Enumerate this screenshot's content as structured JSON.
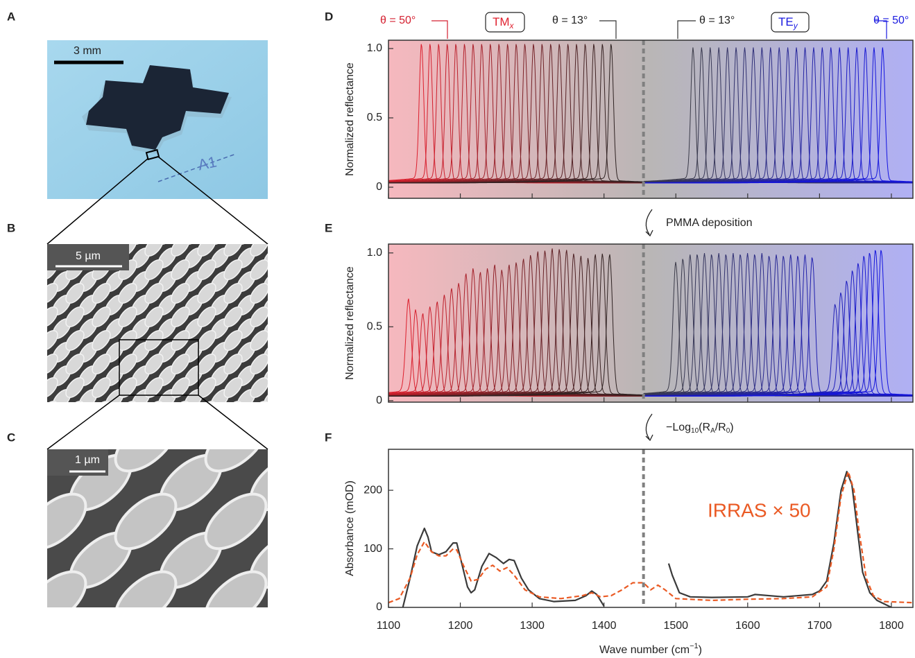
{
  "panels": [
    "A",
    "B",
    "C"
  ],
  "photos": {
    "a_scale": "3 mm",
    "a_mark": "A1",
    "b_scale": "5 µm",
    "c_scale": "1 µm"
  },
  "annotations": {
    "arrow_1": "PMMA deposition",
    "arrow_2": {
      "minus_log": "−Log",
      "sub_10": "10",
      "open": "(R",
      "sub_a": "A",
      "slash": "/R",
      "sub_0": "0",
      "close": ")"
    }
  },
  "chart_data": [
    {
      "type": "resonance",
      "label": "D",
      "ylabel": "Normalized reflectance",
      "xlim": [
        1100,
        1830
      ],
      "ylim": [
        -0.08,
        1.06
      ],
      "xticks": [
        1100,
        1200,
        1300,
        1400,
        1500,
        1600,
        1700,
        1800
      ],
      "yticks": [
        0,
        0.5,
        {
          "value": 1,
          "label": "1.0"
        }
      ],
      "divider": 1455,
      "top_labels": {
        "tm_angle_max": "θ = 50°",
        "tm": "TM",
        "tm_sub": "x",
        "tm_angle_min": "θ = 13°",
        "te_angle_min": "θ = 13°",
        "te": "TE",
        "te_sub": "y",
        "te_angle_max": "θ = 50°"
      },
      "series": [
        {
          "colors": [
            "#dc1f2d",
            "#2e2222"
          ],
          "x": [
            1146,
            1158,
            1170,
            1182,
            1194,
            1206,
            1218,
            1230,
            1242,
            1254,
            1266,
            1278,
            1290,
            1302,
            1314,
            1326,
            1338,
            1350,
            1362,
            1374,
            1386,
            1398,
            1410
          ],
          "values": [
            1,
            1,
            1,
            1,
            1,
            1,
            1,
            1,
            1,
            1,
            1,
            1,
            1,
            1,
            1,
            1,
            1,
            1,
            1,
            1,
            1,
            1,
            1
          ]
        },
        {
          "colors": [
            "#3a3a48",
            "#1414e0"
          ],
          "x": [
            1524,
            1536,
            1548,
            1560,
            1572,
            1584,
            1596,
            1608,
            1620,
            1632,
            1644,
            1656,
            1668,
            1680,
            1692,
            1704,
            1716,
            1728,
            1740,
            1752,
            1764,
            1776,
            1788
          ],
          "values": [
            0.97,
            0.97,
            0.97,
            0.97,
            0.97,
            0.97,
            0.97,
            0.97,
            0.97,
            0.97,
            0.97,
            0.97,
            0.97,
            0.97,
            0.97,
            0.97,
            0.97,
            0.97,
            0.97,
            0.97,
            0.97,
            0.97,
            0.97
          ]
        }
      ]
    },
    {
      "type": "resonance",
      "label": "E",
      "ylabel": "Normalized reflectance",
      "xlim": [
        1100,
        1830
      ],
      "ylim": [
        -0.01,
        1.06
      ],
      "xticks": [
        1100,
        1200,
        1300,
        1400,
        1500,
        1600,
        1700,
        1800
      ],
      "yticks": [
        0,
        0.5,
        {
          "value": 1,
          "label": "1.0"
        }
      ],
      "divider": 1455,
      "series": [
        {
          "colors": [
            "#dc1f2d",
            "#2e2222"
          ],
          "x": [
            1128,
            1138,
            1148,
            1158,
            1168,
            1178,
            1188,
            1198,
            1208,
            1218,
            1228,
            1238,
            1248,
            1258,
            1268,
            1278,
            1288,
            1298,
            1308,
            1318,
            1328,
            1338,
            1348,
            1358,
            1368,
            1378,
            1388,
            1398,
            1408
          ],
          "values": [
            0.65,
            0.58,
            0.55,
            0.6,
            0.63,
            0.68,
            0.72,
            0.76,
            0.82,
            0.86,
            0.83,
            0.86,
            0.88,
            0.85,
            0.88,
            0.9,
            0.92,
            0.95,
            0.97,
            0.98,
            0.99,
            0.99,
            0.98,
            0.96,
            0.94,
            0.93,
            0.95,
            0.96,
            0.95
          ]
        },
        {
          "colors": [
            "#3a3a48",
            "#1414e0"
          ],
          "x": [
            1500,
            1510,
            1520,
            1530,
            1540,
            1550,
            1560,
            1570,
            1580,
            1590,
            1600,
            1610,
            1620,
            1630,
            1640,
            1650,
            1660,
            1670,
            1680,
            1690,
            1722,
            1730,
            1738,
            1746,
            1754,
            1762,
            1770,
            1778,
            1786
          ],
          "values": [
            0.9,
            0.93,
            0.95,
            0.96,
            0.96,
            0.96,
            0.96,
            0.96,
            0.96,
            0.96,
            0.96,
            0.96,
            0.96,
            0.95,
            0.95,
            0.95,
            0.95,
            0.95,
            0.95,
            0.94,
            0.62,
            0.7,
            0.78,
            0.85,
            0.9,
            0.95,
            0.97,
            0.99,
            0.99
          ]
        }
      ]
    },
    {
      "type": "line",
      "label": "F",
      "ylabel": "Absorbance (mOD)",
      "xlabel": {
        "text": "Wave number (cm",
        "sup": "−1",
        "end": ")"
      },
      "xlim": [
        1100,
        1830
      ],
      "ylim": [
        0,
        270
      ],
      "xticks": [
        1100,
        1200,
        1300,
        1400,
        1500,
        1600,
        1700,
        1800
      ],
      "yticks": [
        0,
        100,
        200
      ],
      "divider": 1455,
      "series": [
        {
          "color": "#3a3a3a",
          "dash": false,
          "x": [
            1120,
            1130,
            1140,
            1150,
            1155,
            1160,
            1170,
            1180,
            1190,
            1195,
            1200,
            1210,
            1215,
            1220,
            1230,
            1240,
            1250,
            1260,
            1268,
            1275,
            1285,
            1295,
            1310,
            1330,
            1360,
            1375,
            1383,
            1390,
            1400,
            1450,
            1490,
            1495,
            1505,
            1520,
            1550,
            1600,
            1610,
            1650,
            1690,
            1700,
            1710,
            1720,
            1730,
            1738,
            1745,
            1752,
            1760,
            1770,
            1780,
            1800
          ],
          "values": [
            0,
            50,
            105,
            135,
            120,
            95,
            90,
            95,
            110,
            110,
            85,
            35,
            25,
            30,
            70,
            92,
            85,
            75,
            82,
            80,
            50,
            30,
            15,
            10,
            12,
            20,
            28,
            22,
            2,
            null,
            75,
            55,
            25,
            18,
            17,
            18,
            22,
            18,
            22,
            28,
            45,
            110,
            200,
            232,
            210,
            140,
            60,
            25,
            12,
            0
          ]
        },
        {
          "name": "IRRAS × 50",
          "color": "#ea5a24",
          "dash": true,
          "x": [
            1100,
            1115,
            1130,
            1140,
            1150,
            1160,
            1170,
            1180,
            1190,
            1195,
            1205,
            1215,
            1225,
            1235,
            1245,
            1255,
            1265,
            1275,
            1290,
            1310,
            1340,
            1370,
            1383,
            1395,
            1410,
            1425,
            1440,
            1455,
            1465,
            1475,
            1485,
            1500,
            1550,
            1600,
            1650,
            1690,
            1710,
            1720,
            1730,
            1740,
            1748,
            1755,
            1765,
            1775,
            1790,
            1830
          ],
          "values": [
            8,
            15,
            50,
            90,
            112,
            95,
            88,
            88,
            100,
            98,
            70,
            45,
            48,
            65,
            72,
            62,
            68,
            55,
            30,
            18,
            15,
            20,
            25,
            18,
            20,
            30,
            42,
            42,
            30,
            38,
            30,
            15,
            12,
            14,
            15,
            18,
            35,
            100,
            190,
            232,
            200,
            130,
            50,
            20,
            10,
            8
          ]
        }
      ]
    }
  ]
}
